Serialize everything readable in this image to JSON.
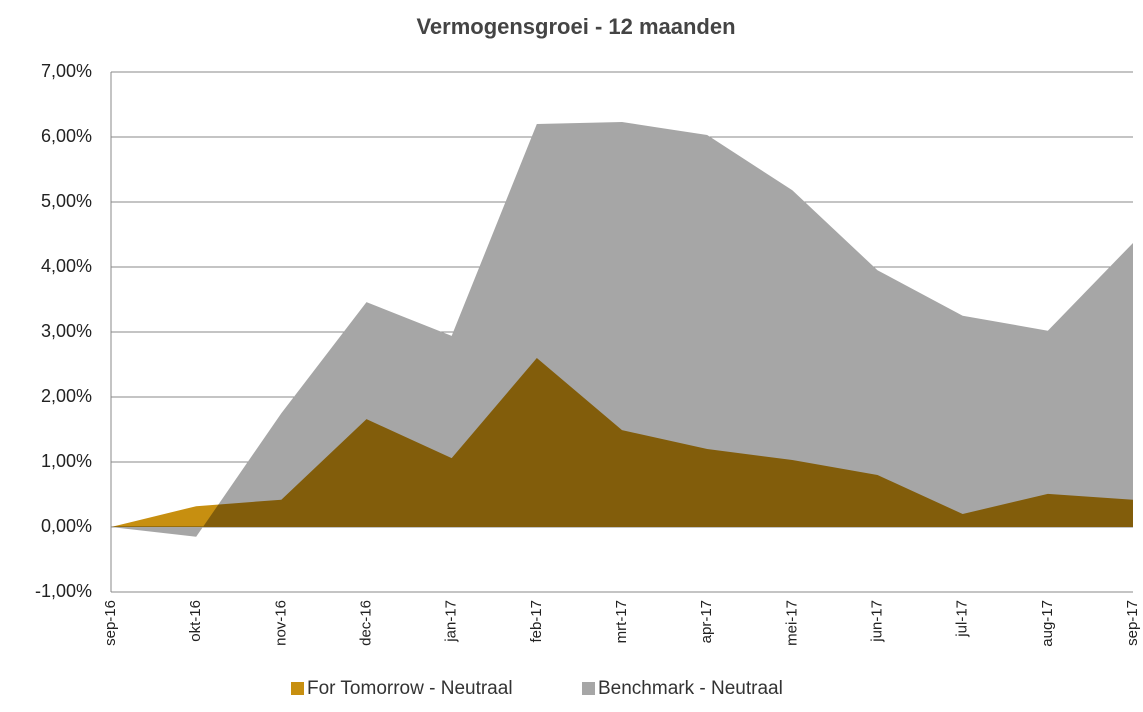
{
  "chart_data": {
    "type": "area",
    "title": "Vermogensgroei - 12 maanden",
    "categories": [
      "sep-16",
      "okt-16",
      "nov-16",
      "dec-16",
      "jan-17",
      "feb-17",
      "mrt-17",
      "apr-17",
      "mei-17",
      "jun-17",
      "jul-17",
      "aug-17",
      "sep-17"
    ],
    "series": [
      {
        "name": "Benchmark - Neutraal",
        "color": "#a6a6a6",
        "values": [
          0,
          -0.15,
          1.75,
          3.46,
          2.94,
          6.2,
          6.23,
          6.03,
          5.18,
          3.95,
          3.25,
          3.02,
          4.37
        ]
      },
      {
        "name": "For Tomorrow - Neutraal",
        "color": "#c78f10",
        "values": [
          0,
          0.32,
          0.42,
          1.66,
          1.06,
          2.6,
          1.49,
          1.2,
          1.03,
          0.8,
          0.2,
          0.51,
          0.42
        ]
      }
    ],
    "ylim": [
      -1,
      7
    ],
    "yticks": [
      {
        "value": -1,
        "label": "-1,00%"
      },
      {
        "value": 0,
        "label": "0,00%"
      },
      {
        "value": 1,
        "label": "1,00%"
      },
      {
        "value": 2,
        "label": "2,00%"
      },
      {
        "value": 3,
        "label": "3,00%"
      },
      {
        "value": 4,
        "label": "4,00%"
      },
      {
        "value": 5,
        "label": "5,00%"
      },
      {
        "value": 6,
        "label": "6,00%"
      },
      {
        "value": 7,
        "label": "7,00%"
      }
    ],
    "grid": true
  }
}
